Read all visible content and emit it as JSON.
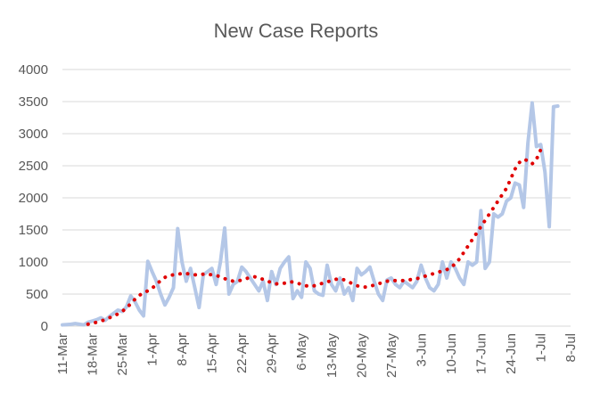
{
  "chart_data": {
    "type": "line",
    "title": "New Case Reports",
    "xlabel": "",
    "ylabel": "",
    "ylim": [
      0,
      4000
    ],
    "y_ticks": [
      0,
      500,
      1000,
      1500,
      2000,
      2500,
      3000,
      3500,
      4000
    ],
    "x_start": "11-Mar",
    "x_ticks": [
      "11-Mar",
      "18-Mar",
      "25-Mar",
      "1-Apr",
      "8-Apr",
      "15-Apr",
      "22-Apr",
      "29-Apr",
      "6-May",
      "13-May",
      "20-May",
      "27-May",
      "3-Jun",
      "10-Jun",
      "17-Jun",
      "24-Jun",
      "1-Jul",
      "8-Jul"
    ],
    "grid": true,
    "legend": "none",
    "series": [
      {
        "style": "solid",
        "color": "#b4c7e7",
        "values": [
          20,
          25,
          30,
          40,
          30,
          20,
          60,
          80,
          100,
          130,
          90,
          150,
          200,
          250,
          230,
          300,
          470,
          380,
          250,
          160,
          1010,
          850,
          700,
          500,
          330,
          450,
          600,
          1520,
          1000,
          700,
          900,
          600,
          290,
          800,
          850,
          900,
          650,
          1000,
          1530,
          500,
          650,
          700,
          920,
          850,
          750,
          650,
          550,
          700,
          400,
          850,
          650,
          900,
          1000,
          1080,
          430,
          550,
          450,
          1000,
          900,
          550,
          500,
          480,
          950,
          650,
          550,
          750,
          500,
          600,
          400,
          900,
          800,
          850,
          920,
          700,
          500,
          400,
          720,
          750,
          650,
          600,
          700,
          650,
          600,
          700,
          950,
          750,
          600,
          550,
          650,
          1000,
          750,
          1000,
          900,
          750,
          650,
          1000,
          950,
          1000,
          1800,
          900,
          1000,
          1750,
          1700,
          1750,
          1950,
          2000,
          2230,
          2200,
          1850,
          2850,
          3480,
          2800,
          2830,
          2400,
          1550,
          3420,
          3430
        ]
      },
      {
        "style": "dotted",
        "color": "#e00000",
        "x_offset": 6,
        "values": [
          30,
          45,
          60,
          80,
          100,
          130,
          160,
          190,
          230,
          280,
          350,
          420,
          480,
          520,
          550,
          590,
          650,
          710,
          760,
          790,
          800,
          810,
          820,
          820,
          810,
          800,
          800,
          810,
          810,
          800,
          790,
          770,
          740,
          720,
          700,
          700,
          720,
          740,
          760,
          770,
          750,
          730,
          700,
          680,
          660,
          660,
          670,
          690,
          690,
          670,
          650,
          630,
          620,
          630,
          650,
          670,
          690,
          710,
          730,
          740,
          720,
          690,
          660,
          630,
          610,
          610,
          620,
          640,
          660,
          680,
          700,
          710,
          710,
          710,
          710,
          720,
          730,
          740,
          760,
          780,
          800,
          820,
          840,
          860,
          880,
          920,
          970,
          1050,
          1150,
          1250,
          1350,
          1450,
          1550,
          1650,
          1750,
          1850,
          1950,
          2050,
          2150,
          2300,
          2450,
          2550,
          2600,
          2580,
          2530,
          2600,
          2750
        ]
      }
    ]
  }
}
